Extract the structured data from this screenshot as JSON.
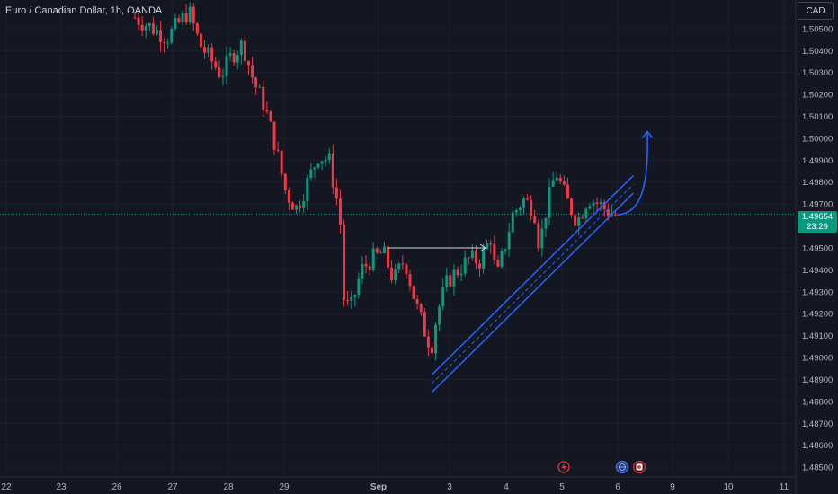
{
  "header": {
    "title": "Euro / Canadian Dollar, 1h, OANDA",
    "currency": "CAD"
  },
  "last_price": {
    "value": "1.49654",
    "countdown": "23:29"
  },
  "colors": {
    "background": "#131722",
    "up": "#089981",
    "down": "#f23645",
    "drawing": "#2962ff",
    "arrow": "#d1d4dc"
  },
  "icons": {
    "event_left": "lightning-icon",
    "event_center": "globe-icon",
    "event_right": "flag-icon"
  },
  "chart_data": {
    "type": "candlestick",
    "ylim": [
      1.4848,
      1.5061
    ],
    "y_ticks": [
      "1.50500",
      "1.50400",
      "1.50300",
      "1.50200",
      "1.50100",
      "1.50000",
      "1.49900",
      "1.49800",
      "1.49700",
      "1.49500",
      "1.49400",
      "1.49300",
      "1.49200",
      "1.49100",
      "1.49000",
      "1.48900",
      "1.48800",
      "1.48700",
      "1.48600",
      "1.48500"
    ],
    "x_ticks": [
      "22",
      "23",
      "26",
      "27",
      "28",
      "29",
      "Sep",
      "3",
      "4",
      "5",
      "6",
      "9",
      "10",
      "11"
    ],
    "path": [
      [
        0,
        1.5055
      ],
      [
        3,
        1.5046
      ],
      [
        4,
        1.5052
      ],
      [
        5,
        1.5058
      ],
      [
        6,
        1.5043
      ],
      [
        8,
        1.5029
      ],
      [
        9,
        1.5038
      ],
      [
        10,
        1.5043
      ],
      [
        11,
        1.5026
      ],
      [
        12,
        1.5015
      ],
      [
        13,
        1.4997
      ],
      [
        14,
        1.4975
      ],
      [
        15,
        1.4968
      ],
      [
        16,
        1.498
      ],
      [
        17,
        1.4992
      ],
      [
        18,
        1.499
      ],
      [
        19,
        1.4965
      ],
      [
        19.4,
        1.4925
      ],
      [
        20,
        1.4922
      ],
      [
        21,
        1.494
      ],
      [
        22,
        1.4945
      ],
      [
        23,
        1.4948
      ],
      [
        24,
        1.4935
      ],
      [
        25,
        1.4945
      ],
      [
        26,
        1.4925
      ],
      [
        27,
        1.491
      ],
      [
        27.5,
        1.4905
      ],
      [
        28,
        1.492
      ],
      [
        29,
        1.4935
      ],
      [
        30,
        1.494
      ],
      [
        31,
        1.4945
      ],
      [
        32,
        1.4944
      ],
      [
        33,
        1.4955
      ],
      [
        33.5,
        1.4935
      ],
      [
        34,
        1.4945
      ],
      [
        35,
        1.4965
      ],
      [
        36,
        1.4972
      ],
      [
        37,
        1.4968
      ],
      [
        37.5,
        1.495
      ],
      [
        38,
        1.4965
      ],
      [
        39,
        1.4985
      ],
      [
        40,
        1.4972
      ],
      [
        41,
        1.4962
      ],
      [
        42,
        1.4973
      ],
      [
        43,
        1.497
      ],
      [
        44,
        1.4966
      ],
      [
        44.7,
        1.4965
      ]
    ],
    "annotations": [
      {
        "type": "horizontal-arrow",
        "from": [
          23.5,
          1.495
        ],
        "to": [
          32.5,
          1.495
        ]
      },
      {
        "type": "channel",
        "from": [
          27.5,
          1.4888
        ],
        "to": [
          46.2,
          1.4979
        ],
        "width": 0.0004
      },
      {
        "type": "curved-arrow",
        "from": [
          44.7,
          1.4965
        ],
        "to": [
          47.5,
          1.5003
        ]
      }
    ],
    "last_value": 1.49654
  }
}
